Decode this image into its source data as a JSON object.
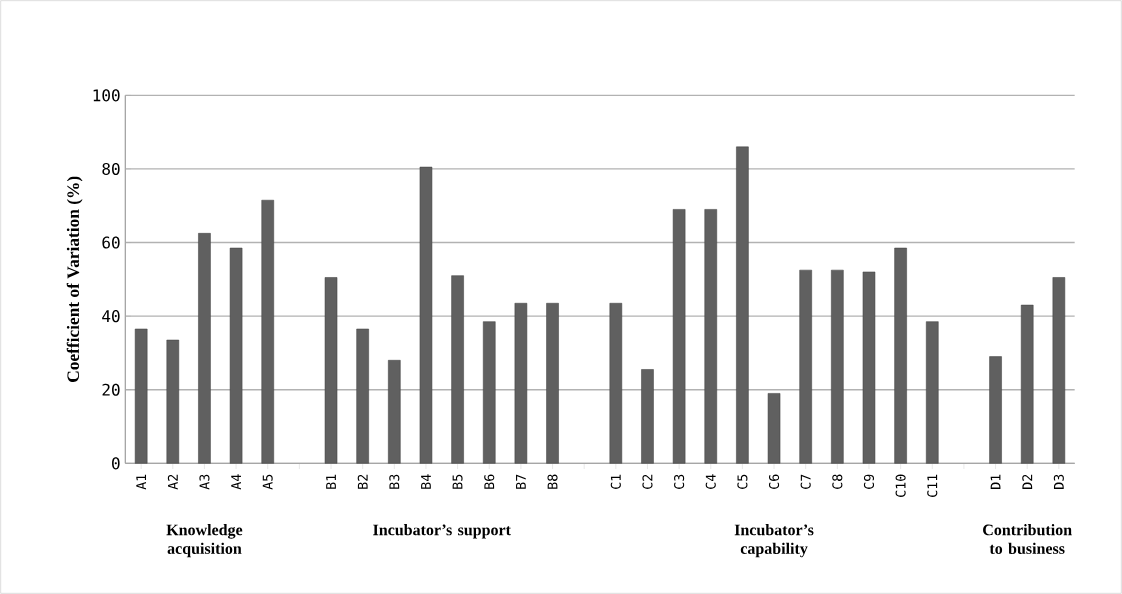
{
  "chart_data": {
    "type": "bar",
    "ylabel": "Coefficient of Variation (%)",
    "categories": [
      "A1",
      "A2",
      "A3",
      "A4",
      "A5",
      null,
      "B1",
      "B2",
      "B3",
      "B4",
      "B5",
      "B6",
      "B7",
      "B8",
      null,
      "C1",
      "C2",
      "C3",
      "C4",
      "C5",
      "C6",
      "C7",
      "C8",
      "C9",
      "C10",
      "C11",
      null,
      "D1",
      "D2",
      "D3"
    ],
    "values": [
      36.5,
      33.5,
      62.5,
      58.5,
      71.5,
      null,
      50.5,
      36.5,
      28,
      80.5,
      51,
      38.5,
      43.5,
      43.5,
      null,
      43.5,
      25.5,
      69,
      69,
      86,
      19,
      52.5,
      52.5,
      52,
      58.5,
      38.5,
      null,
      29,
      43,
      50.5
    ],
    "color": "#606060",
    "ylim": [
      0,
      100
    ],
    "yticks": [
      0,
      20,
      40,
      60,
      80,
      100
    ],
    "grid": "y",
    "annotations": [
      "Knowledge acquisition",
      "Incubator’s support",
      "Incubator’s capability",
      "Contribution to business"
    ]
  }
}
